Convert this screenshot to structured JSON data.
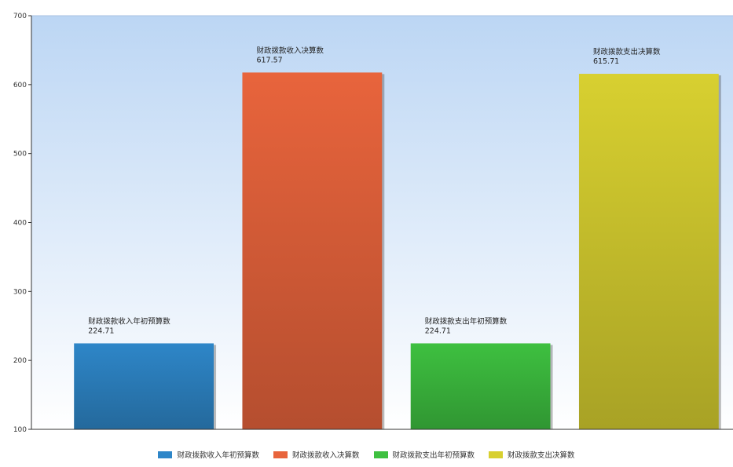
{
  "chart_data": {
    "type": "bar",
    "ylim": [
      100,
      700
    ],
    "yticks": [
      100,
      200,
      300,
      400,
      500,
      600,
      700
    ],
    "grid": false,
    "legend_position": "bottom",
    "series": [
      {
        "name": "财政拨款收入年初预算数",
        "value": 224.71,
        "value_label": "224.71",
        "color": "#2e86c8"
      },
      {
        "name": "财政拨款收入决算数",
        "value": 617.57,
        "value_label": "617.57",
        "color": "#e8643c"
      },
      {
        "name": "财政拨款支出年初预算数",
        "value": 224.71,
        "value_label": "224.71",
        "color": "#3ec040"
      },
      {
        "name": "财政拨款支出决算数",
        "value": 615.71,
        "value_label": "615.71",
        "color": "#d8d030"
      }
    ]
  }
}
